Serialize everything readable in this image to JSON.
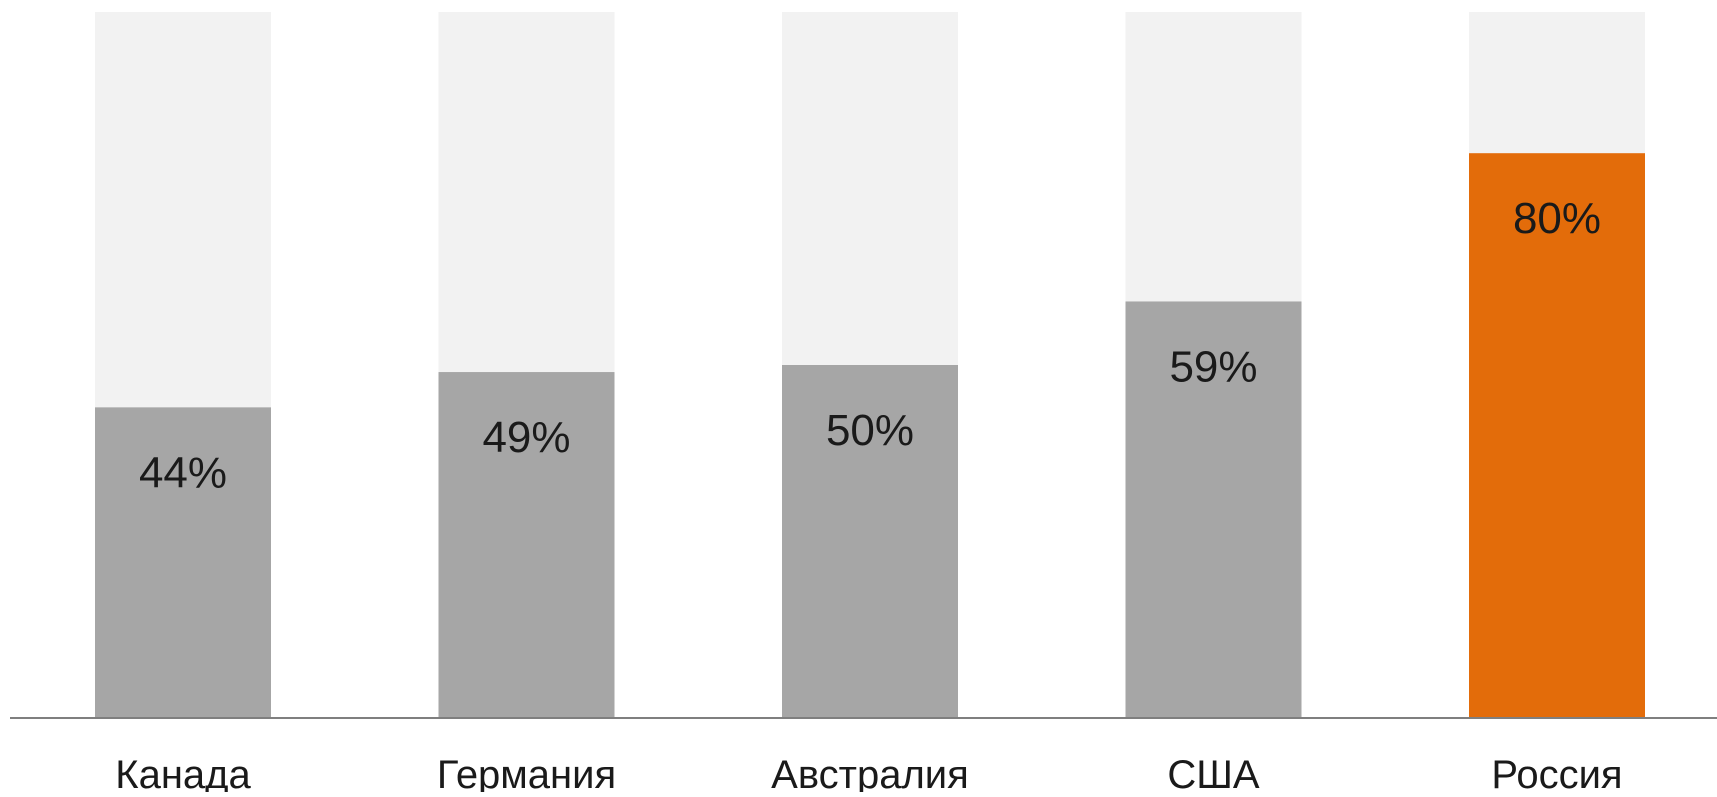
{
  "chart_data": {
    "type": "bar",
    "stacked_to_full": true,
    "categories": [
      "Канада",
      "Германия",
      "Австралия",
      "США",
      "Россия"
    ],
    "values": [
      44,
      49,
      50,
      59,
      80
    ],
    "value_labels": [
      "44%",
      "49%",
      "50%",
      "59%",
      "80%"
    ],
    "ylim": [
      0,
      100
    ],
    "title": "",
    "xlabel": "",
    "ylabel": "",
    "grid": false,
    "legend": "none",
    "colors": {
      "default_bar": "#a6a6a6",
      "highlight_bar": "#e36c0a",
      "background_bar": "#f2f2f2",
      "axis": "#7f7f7f",
      "text": "#1a1a1a"
    },
    "highlight_index": 4
  }
}
